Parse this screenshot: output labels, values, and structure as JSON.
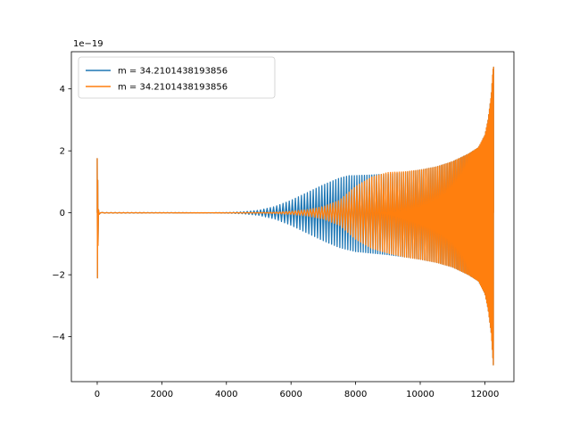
{
  "chart_data": {
    "type": "line",
    "title": "",
    "xlabel": "",
    "ylabel": "",
    "y_offset_text": "1e−19",
    "xlim": [
      -800,
      12900
    ],
    "ylim": [
      -5.45,
      5.2
    ],
    "x_ticks": [
      0,
      2000,
      4000,
      6000,
      8000,
      10000,
      12000
    ],
    "x_tick_labels": [
      "0",
      "2000",
      "4000",
      "6000",
      "8000",
      "10000",
      "12000"
    ],
    "y_ticks": [
      -4,
      -2,
      0,
      2,
      4
    ],
    "y_tick_labels": [
      "−4",
      "−2",
      "0",
      "2",
      "4"
    ],
    "grid": false,
    "legend_position": "upper-left",
    "series": [
      {
        "name": "m = 34.2101438193856",
        "color": "#1f77b4",
        "envelope": {
          "x": [
            0,
            60,
            100,
            3500,
            4000,
            4500,
            5000,
            5500,
            6000,
            6500,
            7000,
            7500,
            7800,
            8000,
            8500,
            9000,
            9500,
            10000,
            10500,
            11000,
            11500,
            11800,
            12000,
            12100,
            12200,
            12250,
            12270
          ],
          "upper": [
            1.75,
            0.05,
            0.01,
            0.005,
            0.01,
            0.03,
            0.08,
            0.2,
            0.4,
            0.65,
            0.9,
            1.12,
            1.2,
            1.2,
            1.22,
            1.25,
            1.3,
            1.38,
            1.48,
            1.65,
            1.9,
            2.1,
            2.5,
            3.0,
            3.8,
            4.6,
            4.7
          ],
          "lower": [
            -2.1,
            -0.05,
            -0.01,
            -0.005,
            -0.01,
            -0.03,
            -0.08,
            -0.2,
            -0.4,
            -0.65,
            -0.9,
            -1.12,
            -1.2,
            -1.25,
            -1.3,
            -1.35,
            -1.42,
            -1.5,
            -1.6,
            -1.75,
            -2.0,
            -2.2,
            -2.6,
            -3.1,
            -3.9,
            -4.7,
            -5.0
          ]
        }
      },
      {
        "name": "m = 34.2101438193856",
        "color": "#ff7f0e",
        "envelope": {
          "x": [
            0,
            60,
            100,
            3500,
            4000,
            4500,
            5000,
            5500,
            6000,
            6500,
            7000,
            7500,
            8000,
            8500,
            9000,
            9500,
            10000,
            10500,
            11000,
            11500,
            11800,
            12000,
            12100,
            12200,
            12250,
            12270
          ],
          "upper": [
            1.75,
            0.05,
            0.01,
            0.0,
            0.002,
            0.005,
            0.01,
            0.02,
            0.05,
            0.1,
            0.2,
            0.4,
            0.85,
            1.15,
            1.3,
            1.32,
            1.38,
            1.48,
            1.65,
            1.9,
            2.1,
            2.5,
            3.0,
            3.8,
            4.6,
            4.7
          ],
          "lower": [
            -2.1,
            -0.05,
            -0.01,
            0.0,
            -0.002,
            -0.005,
            -0.01,
            -0.02,
            -0.05,
            -0.1,
            -0.2,
            -0.4,
            -0.85,
            -1.15,
            -1.3,
            -1.42,
            -1.5,
            -1.6,
            -1.75,
            -2.0,
            -2.2,
            -2.6,
            -3.1,
            -3.9,
            -4.7,
            -5.0
          ]
        }
      }
    ]
  }
}
